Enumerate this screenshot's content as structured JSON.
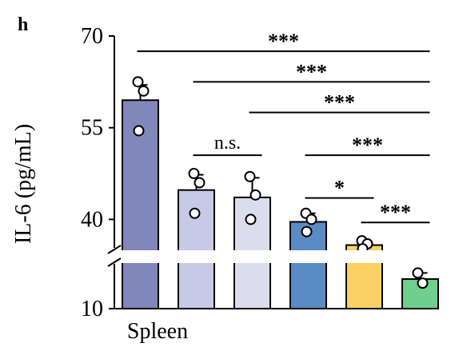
{
  "panel_label": "h",
  "chart_data": {
    "type": "bar",
    "xlabel": "Spleen",
    "ylabel": "IL-6 (pg/mL)",
    "yticks": [
      "10",
      "40",
      "55",
      "70"
    ],
    "ylim": [
      10,
      70
    ],
    "axis_break": true,
    "lower_segment": [
      10,
      18
    ],
    "upper_segment": [
      36,
      70
    ],
    "bars": [
      {
        "value": 59.5,
        "error": 2.5,
        "color": "#8187bb",
        "points": [
          62.5,
          61.0,
          54.5
        ]
      },
      {
        "value": 44.8,
        "error": 2.5,
        "color": "#c7cae6",
        "points": [
          47.5,
          46.0,
          41.0
        ]
      },
      {
        "value": 43.6,
        "error": 3.2,
        "color": "#dcdcec",
        "points": [
          47.0,
          44.0,
          40.0
        ]
      },
      {
        "value": 39.6,
        "error": 1.4,
        "color": "#5b8bc4",
        "points": [
          41.0,
          40.0,
          38.0
        ]
      },
      {
        "value": 35.8,
        "error": 0.7,
        "color": "#fbd163",
        "points": [
          36.5,
          36.0,
          35.2
        ]
      },
      {
        "value": 15.8,
        "error": 1.2,
        "color": "#6fcf8f",
        "points": [
          17.0,
          15.0
        ]
      }
    ],
    "significance": [
      {
        "from": 0,
        "to": 5,
        "label": "***",
        "y": 67.5
      },
      {
        "from": 1,
        "to": 5,
        "label": "***",
        "y": 62.5
      },
      {
        "from": 2,
        "to": 5,
        "label": "***",
        "y": 57.5
      },
      {
        "from": 1,
        "to": 2,
        "label": "n.s.",
        "y": 50.5
      },
      {
        "from": 3,
        "to": 5,
        "label": "***",
        "y": 50.5
      },
      {
        "from": 3,
        "to": 4,
        "label": "*",
        "y": 43.5
      },
      {
        "from": 4,
        "to": 5,
        "label": "***",
        "y": 39.5
      }
    ]
  }
}
